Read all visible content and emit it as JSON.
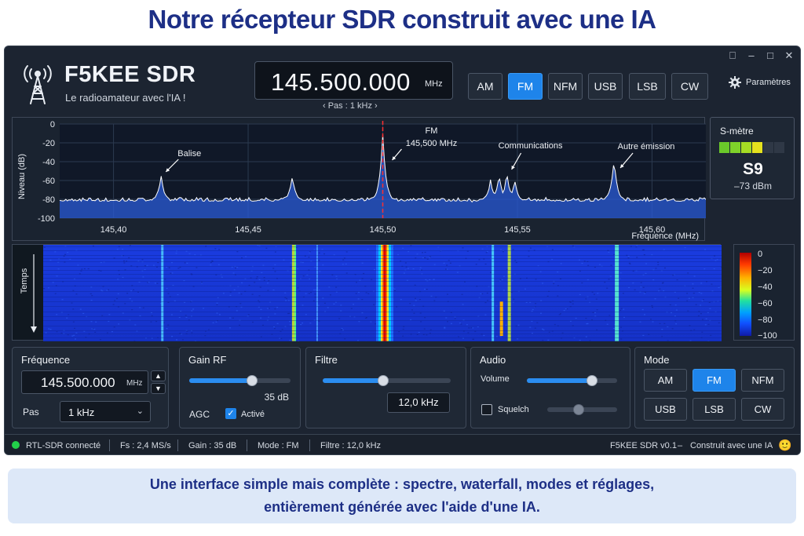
{
  "headline": "Notre récepteur SDR construit avec une IA",
  "window": {
    "controls": [
      "⎕",
      "–",
      "□",
      "✕"
    ]
  },
  "app": {
    "title": "F5KEE SDR",
    "subtitle": "Le radioamateur avec l'IA !",
    "logo_icon": "antenna-tower-icon"
  },
  "frequency": {
    "value": "145.500.000",
    "unit": "MHz",
    "step_label": "‹ Pas : 1 kHz ›"
  },
  "modes": [
    {
      "label": "AM",
      "active": false
    },
    {
      "label": "FM",
      "active": true
    },
    {
      "label": "NFM",
      "active": false
    },
    {
      "label": "USB",
      "active": false
    },
    {
      "label": "LSB",
      "active": false
    },
    {
      "label": "CW",
      "active": false
    }
  ],
  "settings": {
    "label": "Paramètres",
    "icon": "gear-icon"
  },
  "spectrum": {
    "ylabel": "Niveau (dB)",
    "xlabel": "Fréquence (MHz)",
    "y_ticks": [
      "0",
      "-20",
      "-40",
      "-60",
      "-80",
      "-100"
    ],
    "x_ticks": [
      "145,40",
      "145,45",
      "145,50",
      "145,55",
      "145,60"
    ],
    "annotations": [
      {
        "text": "Balise"
      },
      {
        "text": "FM"
      },
      {
        "text": "145,500 MHz"
      },
      {
        "text": "Communications"
      },
      {
        "text": "Autre émission"
      }
    ]
  },
  "chart_data": {
    "type": "line",
    "xlabel": "Fréquence (MHz)",
    "ylabel": "Niveau (dB)",
    "xlim": [
      145.38,
      145.62
    ],
    "ylim": [
      -100,
      0
    ],
    "noise_floor_db": -82,
    "peaks": [
      {
        "freq": 145.4177,
        "level": -56
      },
      {
        "freq": 145.4664,
        "level": -56
      },
      {
        "freq": 145.5,
        "level": -12
      },
      {
        "freq": 145.54,
        "level": -60
      },
      {
        "freq": 145.5432,
        "level": -54
      },
      {
        "freq": 145.5461,
        "level": -52
      },
      {
        "freq": 145.549,
        "level": -60
      },
      {
        "freq": 145.5859,
        "level": -38
      }
    ],
    "marker_freq": 145.5
  },
  "smeter": {
    "title": "S-mètre",
    "value": "S9",
    "dbm": "–73 dBm",
    "bars_lit": 4,
    "bars_total": 6
  },
  "waterfall": {
    "ylabel": "Temps",
    "colorbar_ticks": [
      "0",
      "−20",
      "−40",
      "−60",
      "−80",
      "−100"
    ]
  },
  "panels": {
    "frequence": {
      "title": "Fréquence",
      "value": "145.500.000",
      "unit": "MHz",
      "step_label": "Pas",
      "step_value": "1 kHz"
    },
    "gain": {
      "title": "Gain RF",
      "value": "35 dB",
      "level": 0.62,
      "agc_label": "AGC",
      "agc_checkbox": "Activé",
      "agc_checked": true
    },
    "filtre": {
      "title": "Filtre",
      "value": "12,0 kHz",
      "level": 0.47
    },
    "audio": {
      "title": "Audio",
      "volume_label": "Volume",
      "volume_level": 0.72,
      "squelch_label": "Squelch",
      "squelch_checked": false,
      "squelch_level": 0.45
    },
    "mode": {
      "title": "Mode",
      "buttons": [
        {
          "label": "AM",
          "active": false
        },
        {
          "label": "FM",
          "active": true
        },
        {
          "label": "NFM",
          "active": false
        },
        {
          "label": "USB",
          "active": false
        },
        {
          "label": "LSB",
          "active": false
        },
        {
          "label": "CW",
          "active": false
        }
      ]
    }
  },
  "status": {
    "connected": "RTL-SDR connecté",
    "fs": "Fs : 2,4 MS/s",
    "gain": "Gain : 35 dB",
    "mode": "Mode : FM",
    "filter": "Filtre : 12,0 kHz",
    "version": "F5KEE SDR v0.1",
    "dash": "–",
    "built": "Construit avec une IA",
    "emoji": "🙂",
    "accent_green": "#22d04a"
  },
  "caption": {
    "line1": "Une interface simple mais complète : spectre, waterfall, modes et réglages,",
    "line2": "entièrement générée avec l'aide d'une IA."
  }
}
